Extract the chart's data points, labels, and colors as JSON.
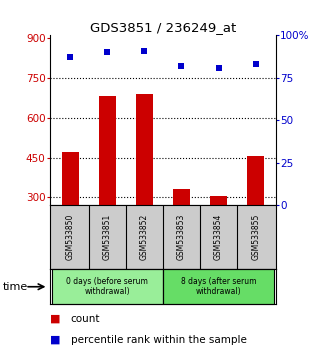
{
  "title": "GDS3851 / 236249_at",
  "samples": [
    "GSM533850",
    "GSM533851",
    "GSM533852",
    "GSM533853",
    "GSM533854",
    "GSM533855"
  ],
  "counts": [
    470,
    680,
    690,
    330,
    305,
    455
  ],
  "percentile_ranks": [
    87,
    90,
    91,
    82,
    81,
    83
  ],
  "ylim_left": [
    270,
    910
  ],
  "ylim_right": [
    0,
    100
  ],
  "yticks_left": [
    300,
    450,
    600,
    750,
    900
  ],
  "yticks_right": [
    0,
    25,
    50,
    75,
    100
  ],
  "bar_color": "#cc0000",
  "dot_color": "#0000cc",
  "bar_bottom": 270,
  "groups": [
    {
      "label": "0 days (before serum\nwithdrawal)",
      "start": 0,
      "end": 3,
      "color": "#99ee99"
    },
    {
      "label": "8 days (after serum\nwithdrawal)",
      "start": 3,
      "end": 6,
      "color": "#66dd66"
    }
  ],
  "bg_color": "#ffffff",
  "sample_bg_color": "#cccccc",
  "left_label_color": "#cc0000",
  "right_label_color": "#0000cc",
  "legend_count_color": "#cc0000",
  "legend_percentile_color": "#0000cc"
}
